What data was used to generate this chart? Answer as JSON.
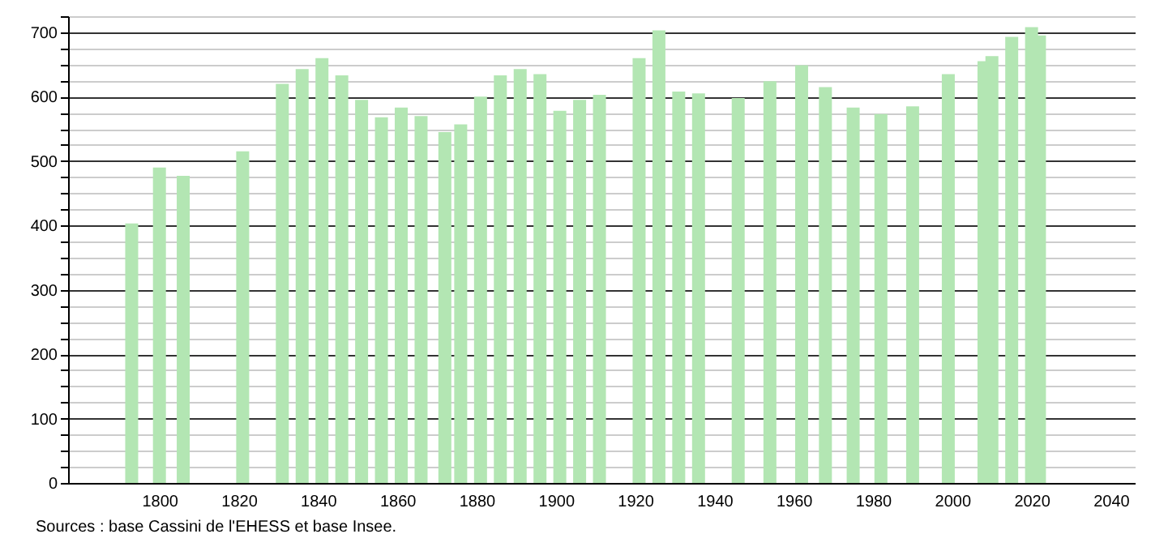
{
  "chart_data": {
    "type": "bar",
    "x": [
      1793,
      1800,
      1806,
      1821,
      1831,
      1836,
      1841,
      1846,
      1851,
      1856,
      1861,
      1866,
      1872,
      1876,
      1881,
      1886,
      1891,
      1896,
      1901,
      1906,
      1911,
      1921,
      1926,
      1931,
      1936,
      1946,
      1954,
      1962,
      1968,
      1975,
      1982,
      1990,
      1999,
      2008,
      2010,
      2015,
      2020,
      2022
    ],
    "values": [
      403,
      490,
      477,
      515,
      620,
      643,
      660,
      633,
      595,
      568,
      583,
      570,
      545,
      557,
      600,
      633,
      643,
      635,
      578,
      595,
      603,
      660,
      703,
      608,
      605,
      598,
      624,
      649,
      615,
      583,
      573,
      585,
      635,
      655,
      663,
      693,
      708,
      695
    ],
    "color": "#b3e6b3",
    "xlim": [
      1779,
      2044
    ],
    "xticks": [
      1800,
      1820,
      1840,
      1860,
      1880,
      1900,
      1920,
      1940,
      1960,
      1980,
      2000,
      2020,
      2040
    ],
    "ylim": [
      0,
      725
    ],
    "yticks": [
      0,
      {
        "value": 25,
        "label": null
      },
      {
        "value": 50,
        "label": null
      },
      {
        "value": 75,
        "label": null
      },
      100,
      {
        "value": 125,
        "label": null
      },
      {
        "value": 150,
        "label": null
      },
      {
        "value": 175,
        "label": null
      },
      200,
      {
        "value": 225,
        "label": null
      },
      {
        "value": 250,
        "label": null
      },
      {
        "value": 275,
        "label": null
      },
      300,
      {
        "value": 325,
        "label": null
      },
      {
        "value": 350,
        "label": null
      },
      {
        "value": 375,
        "label": null
      },
      400,
      {
        "value": 425,
        "label": null
      },
      {
        "value": 450,
        "label": null
      },
      {
        "value": 475,
        "label": null
      },
      500,
      {
        "value": 525,
        "label": null
      },
      {
        "value": 550,
        "label": null
      },
      {
        "value": 575,
        "label": null
      },
      600,
      {
        "value": 625,
        "label": null
      },
      {
        "value": 650,
        "label": null
      },
      {
        "value": 675,
        "label": null
      },
      700,
      {
        "value": 725,
        "label": null
      }
    ],
    "grid": "y",
    "annotations": [
      "Sources : base Cassini de l'EHESS et base Insee."
    ]
  }
}
